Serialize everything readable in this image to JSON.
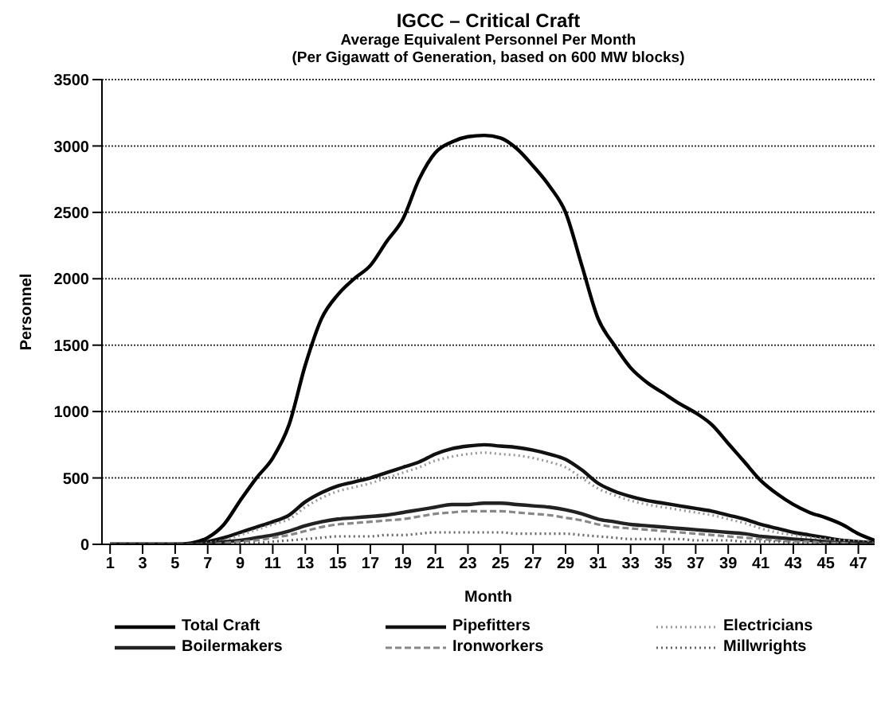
{
  "chart_data": {
    "type": "line",
    "title": "IGCC – Critical Craft",
    "subtitle": "Average Equivalent Personnel Per Month\n(Per Gigawatt of Generation, based on 600 MW blocks)",
    "xlabel": "Month",
    "ylabel": "Personnel",
    "x": [
      1,
      2,
      3,
      4,
      5,
      6,
      7,
      8,
      9,
      10,
      11,
      12,
      13,
      14,
      15,
      16,
      17,
      18,
      19,
      20,
      21,
      22,
      23,
      24,
      25,
      26,
      27,
      28,
      29,
      30,
      31,
      32,
      33,
      34,
      35,
      36,
      37,
      38,
      39,
      40,
      41,
      42,
      43,
      44,
      45,
      46,
      47,
      48
    ],
    "series": [
      {
        "name": "Total Craft",
        "color": "#000000",
        "line_style": "solid",
        "values": [
          0,
          0,
          0,
          0,
          0,
          10,
          50,
          150,
          330,
          500,
          650,
          900,
          1350,
          1700,
          1880,
          2000,
          2100,
          2280,
          2450,
          2750,
          2950,
          3030,
          3070,
          3080,
          3060,
          2980,
          2850,
          2700,
          2500,
          2100,
          1700,
          1500,
          1330,
          1220,
          1140,
          1060,
          990,
          900,
          760,
          620,
          480,
          380,
          300,
          240,
          200,
          150,
          80,
          30
        ]
      },
      {
        "name": "Pipefitters",
        "color": "#111111",
        "line_style": "solid",
        "values": [
          0,
          0,
          0,
          0,
          0,
          0,
          20,
          50,
          90,
          130,
          170,
          220,
          320,
          390,
          440,
          470,
          500,
          540,
          580,
          620,
          680,
          720,
          740,
          750,
          740,
          730,
          710,
          680,
          640,
          560,
          460,
          400,
          360,
          330,
          310,
          290,
          270,
          250,
          220,
          190,
          150,
          120,
          90,
          70,
          50,
          30,
          20,
          10
        ]
      },
      {
        "name": "Electricians",
        "color": "#999999",
        "line_style": "dotted",
        "values": [
          0,
          0,
          0,
          0,
          0,
          0,
          10,
          30,
          70,
          110,
          150,
          190,
          280,
          350,
          400,
          430,
          460,
          500,
          540,
          580,
          630,
          660,
          680,
          690,
          680,
          670,
          650,
          620,
          580,
          500,
          420,
          370,
          330,
          300,
          280,
          260,
          240,
          220,
          190,
          160,
          120,
          90,
          70,
          50,
          40,
          30,
          20,
          10
        ]
      },
      {
        "name": "Boilermakers",
        "color": "#222222",
        "line_style": "solid",
        "values": [
          0,
          0,
          0,
          0,
          0,
          0,
          0,
          20,
          30,
          50,
          70,
          100,
          140,
          170,
          190,
          200,
          210,
          220,
          240,
          260,
          280,
          300,
          300,
          310,
          310,
          300,
          290,
          280,
          260,
          230,
          190,
          170,
          150,
          140,
          130,
          120,
          110,
          100,
          90,
          80,
          60,
          50,
          40,
          30,
          20,
          10,
          10,
          0
        ]
      },
      {
        "name": "Ironworkers",
        "color": "#888888",
        "line_style": "dashed",
        "values": [
          0,
          0,
          0,
          0,
          0,
          0,
          0,
          10,
          20,
          30,
          50,
          70,
          100,
          130,
          150,
          160,
          170,
          180,
          190,
          210,
          230,
          240,
          250,
          250,
          250,
          240,
          230,
          220,
          200,
          180,
          150,
          130,
          120,
          110,
          100,
          90,
          80,
          70,
          60,
          50,
          40,
          30,
          20,
          20,
          10,
          10,
          0,
          0
        ]
      },
      {
        "name": "Millwrights",
        "color": "#666666",
        "line_style": "dotted",
        "values": [
          0,
          0,
          0,
          0,
          0,
          0,
          0,
          0,
          10,
          10,
          20,
          30,
          40,
          50,
          60,
          60,
          60,
          70,
          70,
          80,
          90,
          90,
          90,
          90,
          90,
          80,
          80,
          80,
          80,
          70,
          60,
          50,
          40,
          40,
          40,
          40,
          30,
          30,
          30,
          20,
          20,
          20,
          10,
          10,
          10,
          10,
          0,
          0
        ]
      }
    ],
    "xlim": [
      0.5,
      48
    ],
    "xticks": [
      1,
      3,
      5,
      7,
      9,
      11,
      13,
      15,
      17,
      19,
      21,
      23,
      25,
      27,
      29,
      31,
      33,
      35,
      37,
      39,
      41,
      43,
      45,
      47
    ],
    "ylim": [
      0,
      3500
    ],
    "yticks": [
      0,
      500,
      1000,
      1500,
      2000,
      2500,
      3000,
      3500
    ],
    "grid": "y",
    "legend": "bottom",
    "marker": "none"
  }
}
